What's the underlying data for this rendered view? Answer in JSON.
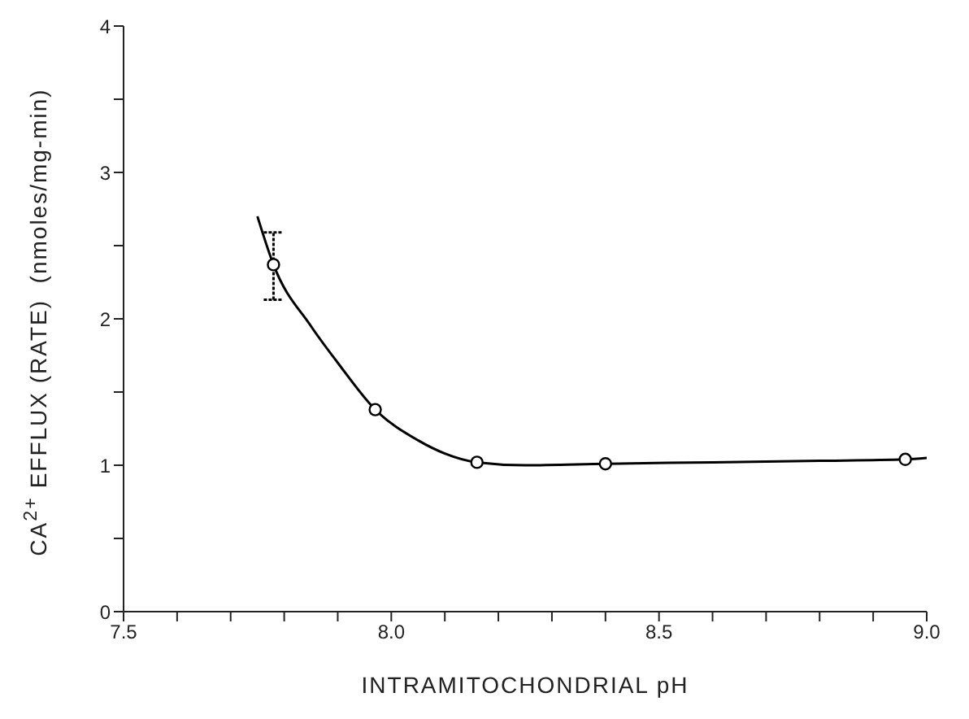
{
  "chart_data": {
    "type": "scatter",
    "xlabel": "INTRAMITOCHONDRIAL pH",
    "ylabel": "CA$^{2+}$ EFFLUX (RATE)  (nmoles/mg-min)",
    "xlim": [
      7.5,
      9.0
    ],
    "ylim": [
      0,
      4
    ],
    "xticks": [
      7.5,
      {
        "value": 7.6,
        "label": null
      },
      {
        "value": 7.7,
        "label": null
      },
      {
        "value": 7.8,
        "label": null
      },
      {
        "value": 7.9,
        "label": null
      },
      {
        "value": 8.0,
        "label": "8.0"
      },
      {
        "value": 8.1,
        "label": null
      },
      {
        "value": 8.2,
        "label": null
      },
      {
        "value": 8.3,
        "label": null
      },
      {
        "value": 8.4,
        "label": null
      },
      8.5,
      {
        "value": 8.6,
        "label": null
      },
      {
        "value": 8.7,
        "label": null
      },
      {
        "value": 8.8,
        "label": null
      },
      {
        "value": 8.9,
        "label": null
      },
      {
        "value": 9.0,
        "label": "9.0"
      }
    ],
    "yticks": [
      0,
      {
        "value": 0.5,
        "label": null
      },
      1,
      {
        "value": 1.5,
        "label": null
      },
      2,
      {
        "value": 2.5,
        "label": null
      },
      3,
      {
        "value": 3.5,
        "label": null
      },
      4
    ],
    "grid": false,
    "legend": false,
    "series": [
      {
        "color": "#000000",
        "marker": "circle",
        "x": [
          7.78,
          7.97,
          8.16,
          8.4,
          8.96
        ],
        "values": [
          2.37,
          1.38,
          1.02,
          1.01,
          1.04
        ],
        "errors": [
          [
            2.13,
            2.59
          ],
          null,
          null,
          null,
          null
        ]
      },
      {
        "type": "line",
        "color": "#000000",
        "marker": "none",
        "line_style": "solid",
        "x": [
          7.75,
          7.78,
          7.85,
          7.9,
          7.97,
          8.05,
          8.1,
          8.16,
          8.25,
          8.4,
          8.6,
          8.8,
          8.96,
          9.0
        ],
        "values": [
          2.7,
          2.37,
          1.95,
          1.7,
          1.38,
          1.17,
          1.08,
          1.02,
          1.0,
          1.01,
          1.02,
          1.03,
          1.04,
          1.05
        ]
      }
    ]
  }
}
